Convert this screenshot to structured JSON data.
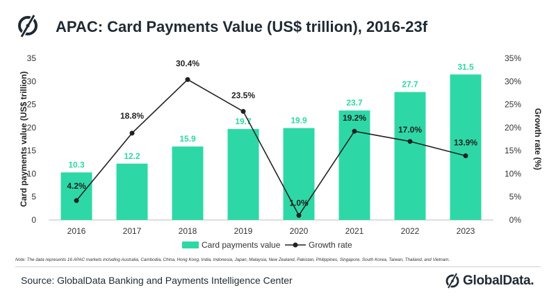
{
  "header": {
    "title": "APAC: Card Payments Value (US$ trillion), 2016-23f"
  },
  "chart_data": {
    "type": "bar",
    "categories": [
      "2016",
      "2017",
      "2018",
      "2019",
      "2020",
      "2021",
      "2022",
      "2023"
    ],
    "series": [
      {
        "name": "Card payments value",
        "type": "bar",
        "axis": "left",
        "values": [
          10.3,
          12.2,
          15.9,
          19.7,
          19.9,
          23.7,
          27.7,
          31.5
        ],
        "labels": [
          "10.3",
          "12.2",
          "15.9",
          "19.7",
          "19.9",
          "23.7",
          "27.7",
          "31.5"
        ],
        "color": "#2ed8a6"
      },
      {
        "name": "Growth rate",
        "type": "line",
        "axis": "right",
        "values": [
          4.2,
          18.8,
          30.4,
          23.5,
          1.0,
          19.2,
          17.0,
          13.9
        ],
        "labels": [
          "4.2%",
          "18.8%",
          "30.4%",
          "23.5%",
          "1.0%",
          "19.2%",
          "17.0%",
          "13.9%"
        ],
        "color": "#222222"
      }
    ],
    "ylabel": "Card payments value (US$ trillion)",
    "y2label": "Growth rate (%)",
    "ylim": [
      0,
      35
    ],
    "y2lim": [
      0,
      35
    ],
    "yticks": [
      "0",
      "5",
      "10",
      "15",
      "20",
      "25",
      "30",
      "35"
    ],
    "y2ticks": [
      "0%",
      "5%",
      "10%",
      "15%",
      "20%",
      "25%",
      "30%",
      "35%"
    ],
    "grid": false,
    "legend": "bottom-center",
    "bar_label_color": "#2ed8a6"
  },
  "note": "Note: The data represents 16 APAC markets including Australia, Cambodia, China, Hong Kong, India, Indonesia, Japan, Malaysia, New Zealand, Pakistan, Philippines, Singapore, South Korea, Taiwan, Thailand, and Vietnam.",
  "footer": {
    "source": "Source: GlobalData Banking and Payments Intelligence Center",
    "brand": "GlobalData.",
    "logo_icon": "globaldata-logo-icon"
  },
  "colors": {
    "accent": "#2ed8a6",
    "text": "#1f2a33",
    "line": "#222222"
  }
}
